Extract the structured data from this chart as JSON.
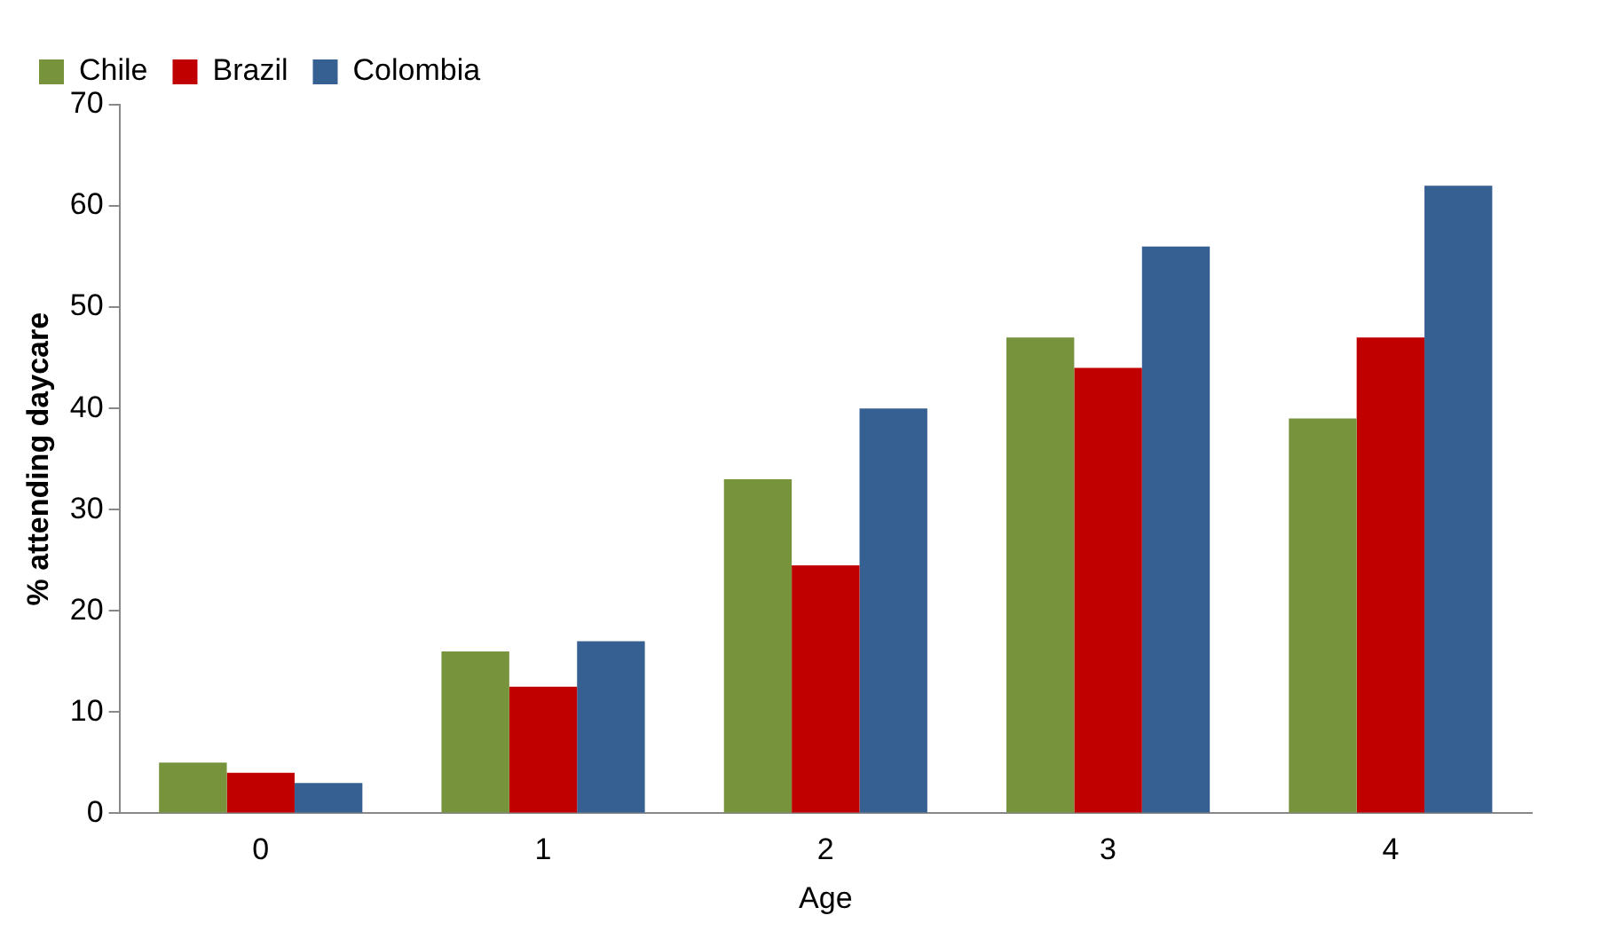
{
  "chart_data": {
    "type": "bar",
    "xlabel": "Age",
    "ylabel": "% attending daycare",
    "categories": [
      "0",
      "1",
      "2",
      "3",
      "4"
    ],
    "series": [
      {
        "name": "Chile",
        "color": "#77933c",
        "values": [
          5,
          16,
          33,
          47,
          39
        ]
      },
      {
        "name": "Brazil",
        "color": "#c00000",
        "values": [
          4,
          12.5,
          24.5,
          44,
          47
        ]
      },
      {
        "name": "Colombia",
        "color": "#376092",
        "values": [
          3,
          17,
          40,
          56,
          62
        ]
      }
    ],
    "ylim": [
      0,
      70
    ],
    "yticks": [
      0,
      10,
      20,
      30,
      40,
      50,
      60,
      70
    ],
    "grid": false,
    "legend": "top left"
  }
}
